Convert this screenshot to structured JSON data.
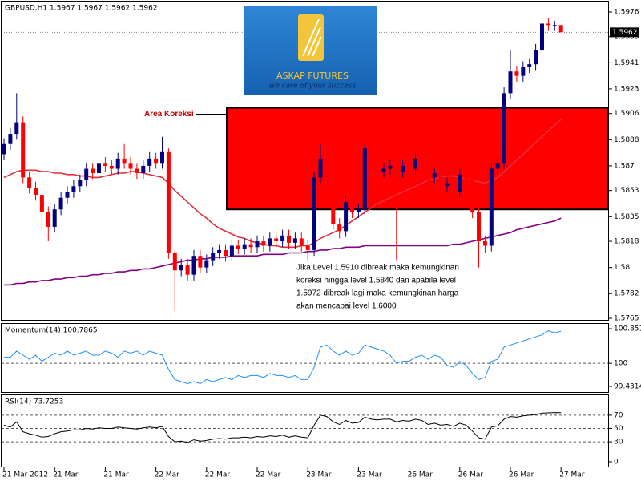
{
  "chart_data": [
    {
      "type": "candlestick",
      "title": "GBPUSD,H1  1.5967  1.5967  1.5962  1.5962",
      "categories": [
        "21 Mar 2012",
        null,
        null,
        null,
        null,
        null,
        null,
        null,
        "21 Mar",
        null,
        null,
        null,
        null,
        null,
        null,
        null,
        "21 Mar",
        null,
        null,
        null,
        null,
        null,
        null,
        null,
        "22 Mar",
        null,
        null,
        null,
        null,
        null,
        null,
        null,
        "22 Mar",
        null,
        null,
        null,
        null,
        null,
        null,
        null,
        "22 Mar",
        null,
        null,
        null,
        null,
        null,
        null,
        null,
        "23 Mar",
        null,
        null,
        null,
        null,
        null,
        null,
        null,
        "23 Mar",
        null,
        null,
        null,
        null,
        null,
        null,
        null,
        "26 Mar",
        null,
        null,
        null,
        null,
        null,
        null,
        null,
        "26 Mar",
        null,
        null,
        null,
        null,
        null,
        null,
        null,
        "26 Mar",
        null,
        null,
        null,
        null,
        null,
        null,
        null,
        "27 Mar"
      ],
      "open": [
        1.5878,
        1.5885,
        1.5892,
        1.59,
        1.5862,
        1.5855,
        1.585,
        1.5838,
        1.5828,
        1.584,
        1.5848,
        1.5852,
        1.5856,
        1.586,
        1.5868,
        1.5865,
        1.5872,
        1.587,
        1.5868,
        1.5875,
        1.5872,
        1.5868,
        1.5865,
        1.587,
        1.5875,
        1.5872,
        1.588,
        1.581,
        1.5798,
        1.5802,
        1.5795,
        1.5808,
        1.58,
        1.5805,
        1.581,
        1.5812,
        1.5808,
        1.5815,
        1.5813,
        1.5816,
        1.5814,
        1.5818,
        1.5815,
        1.582,
        1.5818,
        1.5822,
        1.5817,
        1.582,
        1.5815,
        1.5812,
        1.5862,
        1.5875,
        1.5845,
        1.583,
        1.5825,
        1.5845,
        1.5838,
        1.584,
        1.5882,
        1.587,
        1.5866,
        1.5868,
        1.587,
        1.5866,
        1.587,
        1.5868,
        1.5875,
        1.5872,
        1.5862,
        1.5865,
        1.5856,
        1.5858,
        1.5852,
        1.5864,
        1.586,
        1.5838,
        1.5818,
        1.5815,
        1.5868,
        1.5872,
        1.592,
        1.5935,
        1.5932,
        1.5938,
        1.594,
        1.595,
        1.5968,
        1.5967,
        1.5967
      ],
      "high": [
        1.5889,
        1.5896,
        1.592,
        1.5904,
        1.5866,
        1.5859,
        1.5854,
        1.5842,
        1.5844,
        1.5852,
        1.5856,
        1.586,
        1.5864,
        1.5872,
        1.5872,
        1.5876,
        1.5876,
        1.5874,
        1.5879,
        1.5885,
        1.5876,
        1.5872,
        1.5874,
        1.588,
        1.5879,
        1.589,
        1.5882,
        1.5812,
        1.5806,
        1.5806,
        1.5812,
        1.5812,
        1.5809,
        1.5814,
        1.5816,
        1.5816,
        1.5819,
        1.5819,
        1.582,
        1.582,
        1.5822,
        1.5822,
        1.5824,
        1.5824,
        1.5826,
        1.5826,
        1.5824,
        1.5824,
        1.5819,
        1.5866,
        1.5885,
        1.5879,
        1.5849,
        1.5834,
        1.5849,
        1.5849,
        1.5844,
        1.5886,
        1.5886,
        1.5874,
        1.5872,
        1.5874,
        1.5874,
        1.5874,
        1.5874,
        1.588,
        1.5879,
        1.5876,
        1.5869,
        1.5869,
        1.5862,
        1.5862,
        1.5868,
        1.5868,
        1.5864,
        1.5842,
        1.5822,
        1.5872,
        1.5876,
        1.5924,
        1.595,
        1.5939,
        1.5942,
        1.5944,
        1.5954,
        1.5972,
        1.5972,
        1.597,
        1.5967
      ],
      "low": [
        1.5874,
        1.5881,
        1.5888,
        1.5858,
        1.5851,
        1.5846,
        1.5825,
        1.5818,
        1.5824,
        1.5836,
        1.5844,
        1.5848,
        1.5852,
        1.5856,
        1.5861,
        1.5861,
        1.5866,
        1.5864,
        1.5864,
        1.5868,
        1.5864,
        1.5861,
        1.5861,
        1.5866,
        1.5868,
        1.5868,
        1.5806,
        1.577,
        1.5794,
        1.5791,
        1.5791,
        1.5796,
        1.5796,
        1.5801,
        1.5806,
        1.5804,
        1.5804,
        1.5809,
        1.5809,
        1.581,
        1.581,
        1.5811,
        1.5811,
        1.5814,
        1.5814,
        1.5813,
        1.5813,
        1.5811,
        1.5805,
        1.5808,
        1.5858,
        1.5841,
        1.5826,
        1.582,
        1.5821,
        1.5834,
        1.5834,
        1.5836,
        1.5866,
        1.5862,
        1.5862,
        1.5864,
        1.5805,
        1.5862,
        1.5864,
        1.5864,
        1.5868,
        1.5858,
        1.5858,
        1.5852,
        1.5852,
        1.5848,
        1.5848,
        1.584,
        1.5834,
        1.58,
        1.581,
        1.5811,
        1.5864,
        1.5868,
        1.5916,
        1.5928,
        1.5928,
        1.5934,
        1.5936,
        1.5946,
        1.5963,
        1.5963,
        1.5962
      ],
      "close": [
        1.5885,
        1.5892,
        1.59,
        1.5862,
        1.5855,
        1.585,
        1.5838,
        1.5828,
        1.584,
        1.5848,
        1.5852,
        1.5856,
        1.586,
        1.5868,
        1.5865,
        1.5872,
        1.587,
        1.5868,
        1.5875,
        1.5872,
        1.5868,
        1.5865,
        1.587,
        1.5875,
        1.5872,
        1.588,
        1.581,
        1.5798,
        1.5802,
        1.5795,
        1.5808,
        1.58,
        1.5805,
        1.581,
        1.5812,
        1.5808,
        1.5815,
        1.5813,
        1.5816,
        1.5814,
        1.5818,
        1.5815,
        1.582,
        1.5818,
        1.5822,
        1.5817,
        1.582,
        1.5815,
        1.5812,
        1.5862,
        1.5875,
        1.5845,
        1.583,
        1.5825,
        1.5845,
        1.5838,
        1.584,
        1.5882,
        1.587,
        1.5866,
        1.5868,
        1.587,
        1.5866,
        1.587,
        1.5868,
        1.5875,
        1.5872,
        1.5862,
        1.5865,
        1.5856,
        1.5858,
        1.5852,
        1.5864,
        1.586,
        1.5838,
        1.5818,
        1.5815,
        1.5868,
        1.5872,
        1.592,
        1.5935,
        1.5932,
        1.5938,
        1.594,
        1.595,
        1.5968,
        1.5967,
        1.5967,
        1.5962
      ],
      "up_color": "#000080",
      "down_color": "#ff0000",
      "lines": [
        {
          "color": "#e0303c",
          "values": [
            1.5862,
            1.5864,
            1.5866,
            1.5867,
            1.5867,
            1.5867,
            1.5866,
            1.5866,
            1.5865,
            1.5865,
            1.5864,
            1.5864,
            1.5863,
            1.5863,
            1.5862,
            1.5862,
            1.5863,
            1.5864,
            1.5865,
            1.5865,
            1.5866,
            1.5866,
            1.5865,
            1.5864,
            1.5863,
            1.5862,
            1.5858,
            1.5853,
            1.5849,
            1.5845,
            1.5841,
            1.5837,
            1.5834,
            1.583,
            1.5827,
            1.5825,
            1.5823,
            1.5821,
            1.582,
            1.5818,
            1.5817,
            1.5816,
            1.5815,
            1.5815,
            1.5814,
            1.5814,
            1.5814,
            1.5815,
            1.5815,
            1.5817,
            1.582,
            1.5822,
            1.5824,
            1.5826,
            1.5829,
            1.5832,
            1.5835,
            1.5838,
            1.5841,
            1.5844,
            1.5846,
            1.5848,
            1.585,
            1.5852,
            1.5854,
            1.5856,
            1.5858,
            1.586,
            1.5861,
            1.5862,
            1.5863,
            1.5863,
            1.5862,
            1.5861,
            1.586,
            1.5859,
            1.5858,
            1.586,
            1.5862,
            1.5866,
            1.587,
            1.5874,
            1.5878,
            1.5882,
            1.5886,
            1.589,
            1.5894,
            1.5898,
            1.5902
          ]
        },
        {
          "color": "#800080",
          "values": [
            1.5788,
            1.5788,
            1.5789,
            1.5789,
            1.579,
            1.579,
            1.5791,
            1.5791,
            1.5792,
            1.5792,
            1.5793,
            1.5793,
            1.5794,
            1.5794,
            1.5795,
            1.5795,
            1.5796,
            1.5796,
            1.5797,
            1.5797,
            1.5798,
            1.5798,
            1.5799,
            1.5799,
            1.58,
            1.5801,
            1.5802,
            1.5803,
            1.5804,
            1.5805,
            1.5805,
            1.5806,
            1.5806,
            1.5807,
            1.5807,
            1.5807,
            1.5808,
            1.5808,
            1.5808,
            1.5808,
            1.5808,
            1.5809,
            1.5809,
            1.5809,
            1.5809,
            1.581,
            1.581,
            1.581,
            1.5811,
            1.5811,
            1.5812,
            1.5812,
            1.5813,
            1.5813,
            1.5814,
            1.5814,
            1.5814,
            1.5815,
            1.5815,
            1.5815,
            1.5815,
            1.5815,
            1.5815,
            1.5815,
            1.5815,
            1.5815,
            1.5815,
            1.5815,
            1.5815,
            1.5815,
            1.5815,
            1.5816,
            1.5816,
            1.5817,
            1.5818,
            1.5819,
            1.582,
            1.5821,
            1.5822,
            1.5823,
            1.5824,
            1.5826,
            1.5827,
            1.5828,
            1.5829,
            1.583,
            1.5831,
            1.5832,
            1.5834
          ]
        }
      ],
      "ylim": [
        1.5765,
        1.5976
      ],
      "yticks": [
        1.5765,
        1.5782,
        1.58,
        1.5818,
        1.5835,
        1.5853,
        1.587,
        1.5888,
        1.5906,
        1.5923,
        1.5941,
        1.5959,
        1.5976
      ],
      "last_price": {
        "value": 1.5962,
        "label": "1.5962"
      },
      "zone": {
        "low": 1.584,
        "high": 1.591,
        "color": "#ff0000",
        "label": "Area Koreksi"
      },
      "note": [
        "Jika Level 1.5910 dibreak maka kemungkinan",
        "koreksi hingga level 1.5840 dan apabila level",
        "1.5972 dibreak lagi maka kemungkinan harga",
        "akan mencapai level 1.6000"
      ],
      "logo": {
        "name": "ASKAP FUTURES",
        "tagline": "we care of your success"
      }
    },
    {
      "type": "line",
      "title": "Momentum(14) 100.7865",
      "color": "#1e90ff",
      "values": [
        100.15,
        100.15,
        100.3,
        100.2,
        100.1,
        100.2,
        100.05,
        100.15,
        100.25,
        100.2,
        100.3,
        100.2,
        100.25,
        100.3,
        100.2,
        100.2,
        100.3,
        100.25,
        100.15,
        100.3,
        100.25,
        100.3,
        100.2,
        100.3,
        100.25,
        100.2,
        99.85,
        99.6,
        99.55,
        99.5,
        99.55,
        99.5,
        99.6,
        99.55,
        99.6,
        99.65,
        99.6,
        99.7,
        99.65,
        99.7,
        99.7,
        99.65,
        99.75,
        99.7,
        99.7,
        99.65,
        99.7,
        99.6,
        99.6,
        99.9,
        100.4,
        100.45,
        100.3,
        100.2,
        100.3,
        100.2,
        100.25,
        100.45,
        100.4,
        100.35,
        100.3,
        100.2,
        100.0,
        100.05,
        100.05,
        100.15,
        100.2,
        100.1,
        100.2,
        100.15,
        99.95,
        99.9,
        100.05,
        99.95,
        99.75,
        99.6,
        99.65,
        100.05,
        100.1,
        100.4,
        100.45,
        100.5,
        100.55,
        100.6,
        100.65,
        100.7,
        100.8,
        100.75,
        100.7865
      ],
      "ylim": [
        99.4314,
        100.851
      ],
      "yticks": [
        99.4314,
        100,
        100.851
      ]
    },
    {
      "type": "line",
      "title": "RSI(14) 73.7253",
      "color": "#000000",
      "values": [
        55,
        52,
        60,
        45,
        42,
        40,
        37,
        38,
        42,
        45,
        46,
        48,
        48,
        50,
        49,
        51,
        50,
        50,
        52,
        51,
        50,
        49,
        51,
        52,
        51,
        53,
        38,
        30,
        31,
        29,
        33,
        31,
        32,
        34,
        35,
        34,
        36,
        36,
        37,
        36,
        38,
        37,
        39,
        38,
        40,
        37,
        39,
        37,
        36,
        55,
        70,
        68,
        60,
        56,
        62,
        58,
        59,
        67,
        64,
        63,
        64,
        64,
        60,
        62,
        61,
        64,
        62,
        56,
        58,
        55,
        56,
        53,
        58,
        55,
        46,
        36,
        34,
        52,
        54,
        64,
        68,
        67,
        69,
        70,
        71,
        73,
        73.5,
        74,
        73.7253
      ],
      "ylim": [
        0,
        100
      ],
      "yticks": [
        0,
        30,
        50,
        70
      ]
    }
  ]
}
